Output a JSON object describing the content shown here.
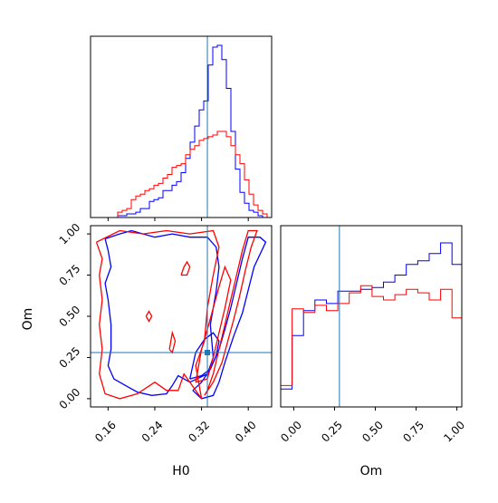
{
  "chart_data": {
    "type": "corner",
    "parameters": [
      "H0",
      "Om"
    ],
    "truth_color": "#1f77b4",
    "truths": {
      "H0": 0.33,
      "Om": 0.28
    },
    "series": [
      {
        "color": "#0000ff"
      },
      {
        "color": "#ff0000"
      }
    ],
    "panels": [
      {
        "id": "hist-H0",
        "type": "histogram",
        "param": "H0",
        "xlim": [
          0.13,
          0.44
        ],
        "bins": [
          0.13,
          0.1378,
          0.1455,
          0.1533,
          0.161,
          0.1688,
          0.1765,
          0.1843,
          0.192,
          0.1998,
          0.2075,
          0.2153,
          0.223,
          0.2308,
          0.2385,
          0.2463,
          0.254,
          0.2618,
          0.2695,
          0.2773,
          0.285,
          0.2928,
          0.3005,
          0.3083,
          0.316,
          0.3238,
          0.3315,
          0.3393,
          0.347,
          0.3548,
          0.3625,
          0.3703,
          0.378,
          0.3858,
          0.3935,
          0.4013,
          0.409,
          0.4168,
          0.4245,
          0.4323,
          0.44
        ],
        "series_counts": [
          [
            0,
            0,
            0,
            0,
            0,
            0,
            1,
            1,
            2,
            2,
            3,
            5,
            5,
            9,
            10,
            11,
            15,
            15,
            18,
            20,
            25,
            33,
            42,
            51,
            60,
            65,
            85,
            95,
            96,
            88,
            72,
            48,
            27,
            14,
            8,
            4,
            3,
            1,
            0,
            0
          ],
          [
            0,
            0,
            0,
            0,
            0,
            0,
            3,
            4,
            5,
            10,
            12,
            13,
            15,
            16,
            18,
            19,
            22,
            24,
            28,
            29,
            30,
            35,
            38,
            40,
            43,
            44,
            45,
            46,
            48,
            48,
            45,
            40,
            35,
            30,
            21,
            13,
            7,
            4,
            2,
            0
          ]
        ]
      },
      {
        "id": "hist-Om",
        "type": "histogram",
        "param": "Om",
        "xlim": [
          -0.08,
          1.03
        ],
        "xticks": [
          0.0,
          0.25,
          0.5,
          0.75,
          1.0
        ],
        "xtick_labels": [
          "0.00",
          "0.25",
          "0.50",
          "0.75",
          "1.00"
        ],
        "xlabel": "Om",
        "bins": [
          -0.08,
          -0.01,
          0.06,
          0.13,
          0.2,
          0.27,
          0.34,
          0.41,
          0.48,
          0.55,
          0.62,
          0.69,
          0.76,
          0.83,
          0.9,
          0.97,
          1.03
        ],
        "series_counts": [
          [
            10,
            40,
            54,
            60,
            58,
            65,
            65,
            66,
            67,
            70,
            74,
            80,
            82,
            86,
            92,
            80
          ],
          [
            12,
            55,
            53,
            57,
            54,
            58,
            64,
            68,
            62,
            60,
            63,
            66,
            64,
            60,
            66,
            50
          ]
        ]
      },
      {
        "id": "contour-H0-Om",
        "type": "2d-contour",
        "x": "H0",
        "y": "Om",
        "xlim": [
          0.13,
          0.44
        ],
        "ylim": [
          -0.05,
          1.05
        ],
        "xticks": [
          0.16,
          0.24,
          0.32,
          0.4
        ],
        "xtick_labels": [
          "0.16",
          "0.24",
          "0.32",
          "0.40"
        ],
        "yticks": [
          0.0,
          0.25,
          0.5,
          0.75,
          1.0
        ],
        "ytick_labels": [
          "0.00",
          "0.25",
          "0.50",
          "0.75",
          "1.00"
        ],
        "xlabel": "H0",
        "ylabel": "Om",
        "contours": [
          {
            "series": 0,
            "points": [
              [
                0.305,
                0.05
              ],
              [
                0.32,
                0.1
              ],
              [
                0.335,
                0.18
              ],
              [
                0.35,
                0.3
              ],
              [
                0.36,
                0.42
              ],
              [
                0.37,
                0.55
              ],
              [
                0.38,
                0.7
              ],
              [
                0.39,
                0.85
              ],
              [
                0.4,
                0.98
              ],
              [
                0.42,
                0.98
              ],
              [
                0.43,
                0.95
              ],
              [
                0.41,
                0.8
              ],
              [
                0.4,
                0.66
              ],
              [
                0.39,
                0.52
              ],
              [
                0.375,
                0.38
              ],
              [
                0.36,
                0.22
              ],
              [
                0.35,
                0.1
              ],
              [
                0.34,
                0.02
              ],
              [
                0.32,
                0.0
              ],
              [
                0.305,
                0.05
              ]
            ]
          },
          {
            "series": 0,
            "points": [
              [
                0.3,
                0.12
              ],
              [
                0.305,
                0.2
              ],
              [
                0.31,
                0.28
              ],
              [
                0.325,
                0.36
              ],
              [
                0.34,
                0.4
              ],
              [
                0.35,
                0.35
              ],
              [
                0.345,
                0.26
              ],
              [
                0.335,
                0.18
              ],
              [
                0.32,
                0.14
              ],
              [
                0.3,
                0.12
              ]
            ]
          },
          {
            "series": 0,
            "points": [
              [
                0.155,
                0.97
              ],
              [
                0.16,
                0.9
              ],
              [
                0.165,
                0.8
              ],
              [
                0.155,
                0.7
              ],
              [
                0.16,
                0.6
              ],
              [
                0.165,
                0.45
              ],
              [
                0.165,
                0.3
              ],
              [
                0.16,
                0.2
              ],
              [
                0.17,
                0.12
              ],
              [
                0.19,
                0.08
              ],
              [
                0.21,
                0.04
              ],
              [
                0.235,
                0.02
              ],
              [
                0.26,
                0.03
              ],
              [
                0.27,
                0.08
              ],
              [
                0.28,
                0.14
              ],
              [
                0.3,
                0.1
              ],
              [
                0.33,
                0.15
              ],
              [
                0.34,
                0.25
              ],
              [
                0.335,
                0.45
              ],
              [
                0.345,
                0.65
              ],
              [
                0.35,
                0.8
              ],
              [
                0.345,
                0.92
              ],
              [
                0.33,
                0.98
              ],
              [
                0.3,
                0.98
              ],
              [
                0.27,
                1.0
              ],
              [
                0.24,
                0.98
              ],
              [
                0.2,
                1.02
              ],
              [
                0.18,
                1.0
              ],
              [
                0.155,
                0.97
              ]
            ]
          },
          {
            "series": 1,
            "points": [
              [
                0.325,
                0.02
              ],
              [
                0.34,
                0.1
              ],
              [
                0.355,
                0.22
              ],
              [
                0.365,
                0.35
              ],
              [
                0.375,
                0.48
              ],
              [
                0.385,
                0.62
              ],
              [
                0.395,
                0.78
              ],
              [
                0.405,
                0.92
              ],
              [
                0.415,
                1.02
              ],
              [
                0.4,
                1.02
              ],
              [
                0.39,
                0.9
              ],
              [
                0.38,
                0.75
              ],
              [
                0.37,
                0.6
              ],
              [
                0.36,
                0.45
              ],
              [
                0.35,
                0.3
              ],
              [
                0.34,
                0.15
              ],
              [
                0.33,
                0.05
              ],
              [
                0.325,
                0.02
              ]
            ]
          },
          {
            "series": 1,
            "points": [
              [
                0.31,
                0.1
              ],
              [
                0.315,
                0.2
              ],
              [
                0.32,
                0.3
              ],
              [
                0.33,
                0.42
              ],
              [
                0.34,
                0.55
              ],
              [
                0.35,
                0.68
              ],
              [
                0.36,
                0.8
              ],
              [
                0.37,
                0.72
              ],
              [
                0.36,
                0.55
              ],
              [
                0.35,
                0.4
              ],
              [
                0.34,
                0.25
              ],
              [
                0.33,
                0.12
              ],
              [
                0.31,
                0.1
              ]
            ]
          },
          {
            "series": 1,
            "points": [
              [
                0.14,
                0.95
              ],
              [
                0.15,
                0.85
              ],
              [
                0.145,
                0.75
              ],
              [
                0.15,
                0.6
              ],
              [
                0.145,
                0.45
              ],
              [
                0.15,
                0.3
              ],
              [
                0.145,
                0.15
              ],
              [
                0.155,
                0.03
              ],
              [
                0.18,
                0.0
              ],
              [
                0.21,
                0.03
              ],
              [
                0.24,
                0.1
              ],
              [
                0.26,
                0.05
              ],
              [
                0.28,
                0.05
              ],
              [
                0.29,
                0.15
              ],
              [
                0.31,
                0.05
              ],
              [
                0.32,
                0.0
              ],
              [
                0.31,
                0.2
              ],
              [
                0.325,
                0.35
              ],
              [
                0.33,
                0.55
              ],
              [
                0.34,
                0.75
              ],
              [
                0.35,
                0.92
              ],
              [
                0.34,
                1.02
              ],
              [
                0.3,
                1.0
              ],
              [
                0.26,
                1.02
              ],
              [
                0.22,
                1.0
              ],
              [
                0.18,
                1.02
              ],
              [
                0.14,
                0.95
              ]
            ]
          },
          {
            "series": 1,
            "points": [
              [
                0.285,
                0.75
              ],
              [
                0.29,
                0.8
              ],
              [
                0.295,
                0.83
              ],
              [
                0.3,
                0.8
              ],
              [
                0.295,
                0.75
              ],
              [
                0.285,
                0.75
              ]
            ]
          },
          {
            "series": 1,
            "points": [
              [
                0.225,
                0.5
              ],
              [
                0.23,
                0.53
              ],
              [
                0.235,
                0.5
              ],
              [
                0.23,
                0.47
              ],
              [
                0.225,
                0.5
              ]
            ]
          },
          {
            "series": 1,
            "points": [
              [
                0.265,
                0.3
              ],
              [
                0.27,
                0.4
              ],
              [
                0.275,
                0.35
              ],
              [
                0.27,
                0.28
              ],
              [
                0.265,
                0.3
              ]
            ]
          }
        ]
      }
    ]
  }
}
